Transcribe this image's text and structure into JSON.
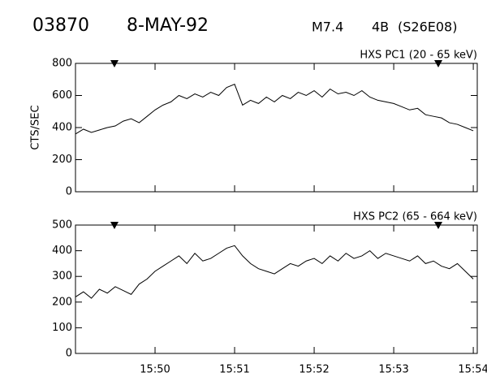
{
  "header": {
    "id": "03870",
    "date": "8-MAY-92",
    "class": "M7.4",
    "importance": "4B",
    "location": "(S26E08)"
  },
  "chart_data": [
    {
      "type": "line",
      "title": "HXS PC1 (20 - 65 keV)",
      "ylabel": "CTS/SEC",
      "color": "#000000",
      "x": [
        949.0,
        949.1,
        949.2,
        949.3,
        949.4,
        949.5,
        949.6,
        949.7,
        949.8,
        949.9,
        950.0,
        950.1,
        950.2,
        950.3,
        950.4,
        950.5,
        950.6,
        950.7,
        950.8,
        950.9,
        951.0,
        951.1,
        951.2,
        951.3,
        951.4,
        951.5,
        951.6,
        951.7,
        951.8,
        951.9,
        952.0,
        952.1,
        952.2,
        952.3,
        952.4,
        952.5,
        952.6,
        952.7,
        952.8,
        952.9,
        953.0,
        953.1,
        953.2,
        953.3,
        953.4,
        953.5,
        953.6,
        953.7,
        953.8,
        953.9,
        954.0
      ],
      "values": [
        360,
        390,
        370,
        385,
        400,
        410,
        440,
        455,
        430,
        470,
        510,
        540,
        560,
        600,
        580,
        610,
        590,
        620,
        600,
        650,
        670,
        540,
        570,
        550,
        590,
        560,
        600,
        580,
        620,
        600,
        630,
        590,
        640,
        610,
        620,
        600,
        630,
        590,
        570,
        560,
        550,
        530,
        510,
        520,
        480,
        470,
        460,
        430,
        420,
        400,
        380
      ],
      "xlim": [
        949,
        954.05
      ],
      "xticks": [
        950,
        951,
        952,
        953,
        954
      ],
      "ylim": [
        0,
        800
      ],
      "yticks": [
        0,
        200,
        400,
        600,
        800
      ]
    },
    {
      "type": "line",
      "title": "HXS PC2 (65 - 664 keV)",
      "color": "#000000",
      "x": [
        949.0,
        949.1,
        949.2,
        949.3,
        949.4,
        949.5,
        949.6,
        949.7,
        949.8,
        949.9,
        950.0,
        950.1,
        950.2,
        950.3,
        950.4,
        950.5,
        950.6,
        950.7,
        950.8,
        950.9,
        951.0,
        951.1,
        951.2,
        951.3,
        951.4,
        951.5,
        951.6,
        951.7,
        951.8,
        951.9,
        952.0,
        952.1,
        952.2,
        952.3,
        952.4,
        952.5,
        952.6,
        952.7,
        952.8,
        952.9,
        953.0,
        953.1,
        953.2,
        953.3,
        953.4,
        953.5,
        953.6,
        953.7,
        953.8,
        953.9,
        954.0
      ],
      "values": [
        220,
        240,
        215,
        250,
        235,
        260,
        245,
        230,
        270,
        290,
        320,
        340,
        360,
        380,
        350,
        390,
        360,
        370,
        390,
        410,
        420,
        380,
        350,
        330,
        320,
        310,
        330,
        350,
        340,
        360,
        370,
        350,
        380,
        360,
        390,
        370,
        380,
        400,
        370,
        390,
        380,
        370,
        360,
        380,
        350,
        360,
        340,
        330,
        350,
        320,
        290
      ],
      "xlim": [
        949,
        954.05
      ],
      "xticks": [
        {
          "value": 950,
          "label": "15:50"
        },
        {
          "value": 951,
          "label": "15:51"
        },
        {
          "value": 952,
          "label": "15:52"
        },
        {
          "value": 953,
          "label": "15:53"
        },
        {
          "value": 954,
          "label": "15:54"
        }
      ],
      "ylim": [
        0,
        500
      ],
      "yticks": [
        0,
        100,
        200,
        300,
        400,
        500
      ]
    }
  ]
}
